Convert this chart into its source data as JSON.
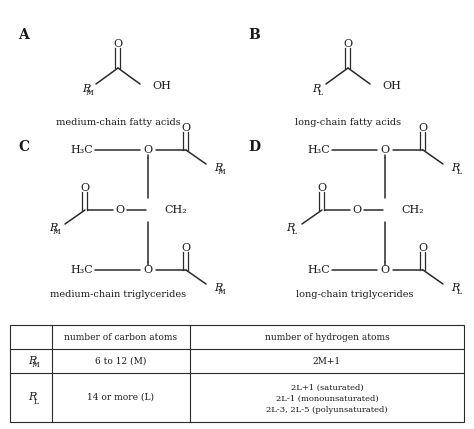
{
  "bg_color": "#ffffff",
  "border_color": "#2a2a2a",
  "text_color": "#1a1a1a",
  "fig_width": 4.74,
  "fig_height": 4.29,
  "label_A": "A",
  "label_B": "B",
  "label_C": "C",
  "label_D": "D",
  "caption_A": "medium-chain fatty acids",
  "caption_B": "long-chain fatty acids",
  "caption_C": "medium-chain triglycerides",
  "caption_D": "long-chain triglycerides",
  "table_col1_header": "number of carbon atoms",
  "table_col2_header": "number of hydrogen atoms",
  "table_row1_col1": "6 to 12 (M)",
  "table_row1_col2": "2M+1",
  "table_row2_col1": "14 or more (L)",
  "table_row2_col2_lines": [
    "2L+1 (saturated)",
    "2L-1 (monounsaturated)",
    "2L-3, 2L-5 (polyunsaturated)"
  ]
}
